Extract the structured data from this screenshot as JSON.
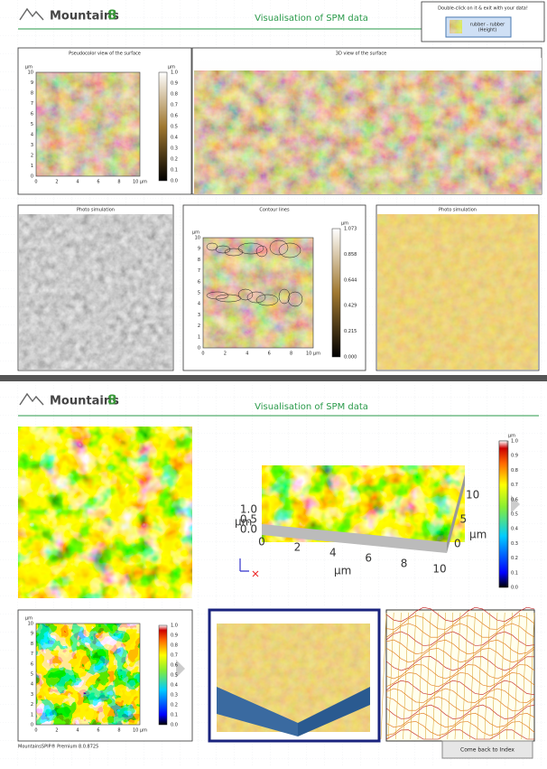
{
  "page1": {
    "brand": "Mountains",
    "version": "8",
    "title": "Visualisation of SPM data",
    "hint": "Double-click on it & exit with your data!",
    "thumbnail": [
      "rubber - rubber",
      "(Height)"
    ],
    "pseudocolor": {
      "title": "Pseudocolor view of the surface",
      "unit": "µm",
      "yticks": [
        "0",
        "1",
        "2",
        "3",
        "4",
        "5",
        "6",
        "7",
        "8",
        "9",
        "10"
      ],
      "xticks": [
        "0",
        "2",
        "4",
        "6",
        "8",
        "10 µm"
      ],
      "colorbar_unit": "µm",
      "colorbar_ticks": [
        "0.0",
        "0.1",
        "0.2",
        "0.3",
        "0.4",
        "0.5",
        "0.6",
        "0.7",
        "0.8",
        "0.9",
        "1.0"
      ]
    },
    "view3d": {
      "title": "3D view of the surface"
    },
    "photo_grey": {
      "title": "Photo simulation"
    },
    "contour": {
      "title": "Contour lines",
      "unit": "µm",
      "yticks": [
        "0",
        "1",
        "2",
        "3",
        "4",
        "5",
        "6",
        "7",
        "8",
        "9",
        "10"
      ],
      "xticks": [
        "0",
        "2",
        "4",
        "6",
        "8",
        "10 µm"
      ],
      "colorbar_unit": "µm",
      "colorbar_ticks": [
        "0.000",
        "0.215",
        "0.429",
        "0.644",
        "0.858",
        "1.073"
      ]
    },
    "photo_gold": {
      "title": "Photo simulation"
    }
  },
  "page2": {
    "brand": "Mountains",
    "version": "8",
    "title": "Visualisation of SPM data",
    "colorbar": {
      "unit": "µm",
      "ticks": [
        "0.0",
        "0.1",
        "0.2",
        "0.3",
        "0.4",
        "0.5",
        "0.6",
        "0.7",
        "0.8",
        "0.9",
        "1.0"
      ]
    },
    "plot3d": {
      "z_unit": "µm",
      "z_ticks": [
        "0.0",
        "0.5",
        "1.0"
      ],
      "x_unit": "µm",
      "x_ticks": [
        "0",
        "2",
        "4",
        "6",
        "8",
        "10"
      ],
      "y_unit": "µm",
      "y_ticks": [
        "0",
        "5",
        "10"
      ]
    },
    "small_map": {
      "unit": "µm",
      "yticks": [
        "0",
        "1",
        "2",
        "3",
        "4",
        "5",
        "6",
        "7",
        "8",
        "9",
        "10"
      ],
      "xticks": [
        "0",
        "2",
        "4",
        "6",
        "8",
        "10 µm"
      ],
      "colorbar_ticks": [
        "0.0",
        "0.1",
        "0.2",
        "0.3",
        "0.4",
        "0.5",
        "0.6",
        "0.7",
        "0.8",
        "0.9",
        "1.0"
      ]
    },
    "footer": "MountainsSPIP® Premium 8.0.8725",
    "button": "Come back to Index"
  }
}
